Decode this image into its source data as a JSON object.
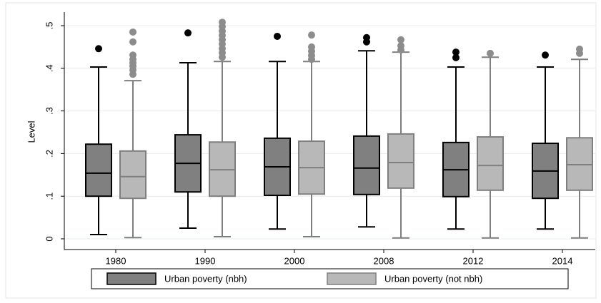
{
  "chart_data": {
    "type": "box",
    "y_label": "Level",
    "categories": [
      "1980",
      "1990",
      "2000",
      "2008",
      "2012",
      "2014"
    ],
    "ylim": [
      0,
      0.5
    ],
    "yticks": [
      0,
      {
        "value": 0.1,
        "label": ".1"
      },
      {
        "value": 0.2,
        "label": ".2"
      },
      {
        "value": 0.3,
        "label": ".3"
      },
      {
        "value": 0.4,
        "label": ".4"
      },
      {
        "value": 0.5,
        "label": ".5"
      }
    ],
    "grid": true,
    "legend": "bottom",
    "series": [
      {
        "name": "Urban poverty (nbh)",
        "color": "#808080",
        "edge": "#000000",
        "whislo": [
          0.01,
          0.025,
          0.023,
          0.028,
          0.023,
          0.023
        ],
        "q1": [
          0.1,
          0.11,
          0.102,
          0.104,
          0.099,
          0.095
        ],
        "median": [
          0.154,
          0.177,
          0.169,
          0.166,
          0.162,
          0.159
        ],
        "q3": [
          0.222,
          0.244,
          0.236,
          0.241,
          0.226,
          0.224
        ],
        "whishi": [
          0.403,
          0.413,
          0.416,
          0.441,
          0.403,
          0.403
        ],
        "outliers": [
          [
            0.446
          ],
          [
            0.483
          ],
          [
            0.475
          ],
          [
            0.472,
            0.462
          ],
          [
            0.438,
            0.425
          ],
          [
            0.431
          ]
        ]
      },
      {
        "name": "Urban poverty (not nbh)",
        "color": "#b8b8b8",
        "edge": "#7f7f7f",
        "whislo": [
          0.003,
          0.005,
          0.005,
          0.002,
          0.002,
          0.002
        ],
        "q1": [
          0.095,
          0.1,
          0.105,
          0.119,
          0.114,
          0.114
        ],
        "median": [
          0.146,
          0.162,
          0.167,
          0.179,
          0.172,
          0.174
        ],
        "q3": [
          0.206,
          0.227,
          0.229,
          0.246,
          0.239,
          0.237
        ],
        "whishi": [
          0.371,
          0.416,
          0.416,
          0.438,
          0.426,
          0.421
        ],
        "outliers": [
          [
            0.485,
            0.462,
            0.431,
            0.421,
            0.413,
            0.405,
            0.396,
            0.386
          ],
          [
            0.508,
            0.498,
            0.487,
            0.477,
            0.467,
            0.457,
            0.446,
            0.436,
            0.426
          ],
          [
            0.478,
            0.45,
            0.44,
            0.43,
            0.421
          ],
          [
            0.467,
            0.453,
            0.443
          ],
          [
            0.435
          ],
          [
            0.445,
            0.435
          ]
        ]
      }
    ]
  }
}
